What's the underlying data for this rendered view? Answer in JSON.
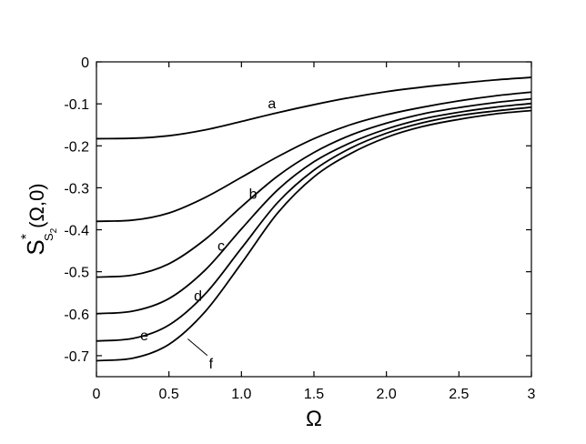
{
  "chart_data": {
    "type": "line",
    "xlabel": "Ω",
    "ylabel": {
      "base": "S",
      "superscript": "*",
      "subscript": "S",
      "subsubscript": "2",
      "args": "(Ω,0)"
    },
    "xlim": [
      0,
      3
    ],
    "ylim": [
      -0.75,
      0
    ],
    "xticks": [
      0,
      0.5,
      1.0,
      1.5,
      2.0,
      2.5,
      3
    ],
    "xtick_labels": [
      "0",
      "0.5",
      "1.0",
      "1.5",
      "2.0",
      "2.5",
      "3"
    ],
    "yticks": [
      0,
      -0.1,
      -0.2,
      -0.3,
      -0.4,
      -0.5,
      -0.6,
      -0.7
    ],
    "ytick_labels": [
      "0",
      "-0.1",
      "-0.2",
      "-0.3",
      "-0.4",
      "-0.5",
      "-0.6",
      "-0.7"
    ],
    "grid": false,
    "legend": "none",
    "series": [
      {
        "name": "a",
        "x": [
          0,
          0.25,
          0.5,
          0.75,
          1.0,
          1.25,
          1.5,
          1.75,
          2.0,
          2.25,
          2.5,
          2.75,
          3.0
        ],
        "y": [
          -0.183,
          -0.182,
          -0.176,
          -0.162,
          -0.142,
          -0.121,
          -0.102,
          -0.085,
          -0.071,
          -0.06,
          -0.051,
          -0.043,
          -0.037
        ]
      },
      {
        "name": "b",
        "x": [
          0,
          0.25,
          0.5,
          0.75,
          1.0,
          1.25,
          1.5,
          1.75,
          2.0,
          2.25,
          2.5,
          2.75,
          3.0
        ],
        "y": [
          -0.38,
          -0.377,
          -0.36,
          -0.323,
          -0.275,
          -0.226,
          -0.183,
          -0.15,
          -0.126,
          -0.108,
          -0.093,
          -0.081,
          -0.072
        ]
      },
      {
        "name": "c",
        "x": [
          0,
          0.25,
          0.5,
          0.75,
          1.0,
          1.25,
          1.5,
          1.75,
          2.0,
          2.25,
          2.5,
          2.75,
          3.0
        ],
        "y": [
          -0.513,
          -0.508,
          -0.481,
          -0.423,
          -0.345,
          -0.272,
          -0.216,
          -0.175,
          -0.146,
          -0.124,
          -0.109,
          -0.097,
          -0.088
        ]
      },
      {
        "name": "d",
        "x": [
          0,
          0.25,
          0.5,
          0.75,
          1.0,
          1.25,
          1.5,
          1.75,
          2.0,
          2.25,
          2.5,
          2.75,
          3.0
        ],
        "y": [
          -0.6,
          -0.594,
          -0.564,
          -0.496,
          -0.398,
          -0.305,
          -0.238,
          -0.193,
          -0.16,
          -0.136,
          -0.12,
          -0.108,
          -0.099
        ]
      },
      {
        "name": "e",
        "x": [
          0,
          0.25,
          0.5,
          0.75,
          1.0,
          1.25,
          1.5,
          1.75,
          2.0,
          2.25,
          2.5,
          2.75,
          3.0
        ],
        "y": [
          -0.665,
          -0.659,
          -0.627,
          -0.553,
          -0.444,
          -0.335,
          -0.258,
          -0.206,
          -0.17,
          -0.145,
          -0.128,
          -0.117,
          -0.108
        ]
      },
      {
        "name": "f",
        "x": [
          0,
          0.25,
          0.5,
          0.75,
          1.0,
          1.25,
          1.5,
          1.75,
          2.0,
          2.25,
          2.5,
          2.75,
          3.0
        ],
        "y": [
          -0.712,
          -0.706,
          -0.673,
          -0.595,
          -0.48,
          -0.36,
          -0.274,
          -0.219,
          -0.18,
          -0.154,
          -0.137,
          -0.124,
          -0.116
        ]
      }
    ],
    "annotations": [
      {
        "text": "a",
        "x": 1.21,
        "y": -0.098
      },
      {
        "text": "b",
        "x": 1.08,
        "y": -0.313
      },
      {
        "text": "c",
        "x": 0.86,
        "y": -0.437
      },
      {
        "text": "d",
        "x": 0.7,
        "y": -0.556
      },
      {
        "text": "e",
        "x": 0.33,
        "y": -0.65
      },
      {
        "text": "f",
        "x": 0.79,
        "y": -0.717,
        "leader": {
          "x": 0.63,
          "y": -0.66
        }
      }
    ]
  }
}
